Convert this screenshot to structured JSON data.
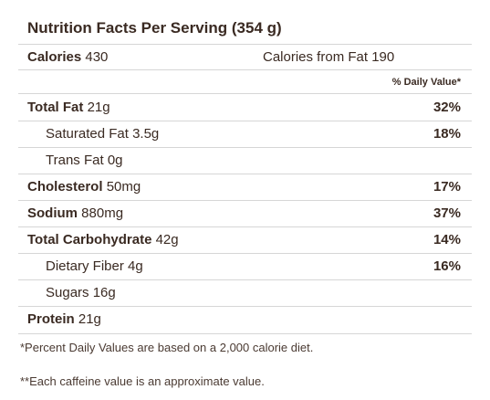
{
  "title": "Nutrition Facts Per Serving (354 g)",
  "calories": {
    "label": "Calories",
    "value": "430",
    "from_fat_label": "Calories from Fat",
    "from_fat_value": "190"
  },
  "daily_value_header": "% Daily Value*",
  "nutrients": [
    {
      "name": "Total Fat",
      "amount": "21g",
      "percent": "32%"
    },
    {
      "name": "Saturated Fat",
      "amount": "3.5g",
      "percent": "18%"
    },
    {
      "name": "Trans Fat",
      "amount": "0g",
      "percent": ""
    },
    {
      "name": "Cholesterol",
      "amount": "50mg",
      "percent": "17%"
    },
    {
      "name": "Sodium",
      "amount": "880mg",
      "percent": "37%"
    },
    {
      "name": "Total Carbohydrate",
      "amount": "42g",
      "percent": "14%"
    },
    {
      "name": "Dietary Fiber",
      "amount": "4g",
      "percent": "16%"
    },
    {
      "name": "Sugars",
      "amount": "16g",
      "percent": ""
    },
    {
      "name": "Protein",
      "amount": "21g",
      "percent": ""
    }
  ],
  "footnotes": [
    "*Percent Daily Values are based on a 2,000 calorie diet.",
    "**Each caffeine value is an approximate value."
  ]
}
